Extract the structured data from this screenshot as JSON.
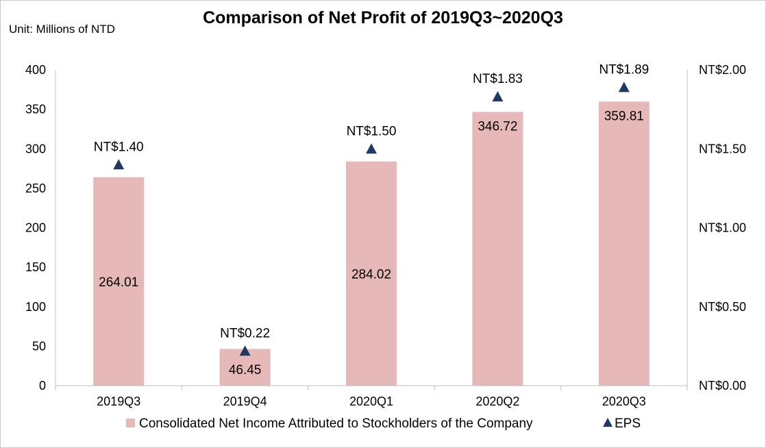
{
  "chart_data": {
    "type": "bar",
    "title": "Comparison of Net Profit of 2019Q3~2020Q3",
    "unit_label": "Unit: Millions of NTD",
    "categories": [
      "2019Q3",
      "2019Q4",
      "2020Q1",
      "2020Q2",
      "2020Q3"
    ],
    "series": [
      {
        "name": "Consolidated Net Income Attributed to Stockholders of the Company",
        "kind": "bar",
        "axis": "left",
        "color": "#e6b8b7",
        "values": [
          264.01,
          46.45,
          284.02,
          346.72,
          359.81
        ],
        "labels": [
          "264.01",
          "46.45",
          "284.02",
          "346.72",
          "359.81"
        ]
      },
      {
        "name": "EPS",
        "kind": "triangle-marker",
        "axis": "right",
        "color": "#1f3864",
        "values": [
          1.4,
          0.22,
          1.5,
          1.83,
          1.89
        ],
        "labels": [
          "NT$1.40",
          "NT$0.22",
          "NT$1.50",
          "NT$1.83",
          "NT$1.89"
        ]
      }
    ],
    "y_left": {
      "min": 0,
      "max": 400,
      "ticks": [
        0,
        50,
        100,
        150,
        200,
        250,
        300,
        350,
        400
      ],
      "tick_labels": [
        "0",
        "50",
        "100",
        "150",
        "200",
        "250",
        "300",
        "350",
        "400"
      ]
    },
    "y_right": {
      "min": 0,
      "max": 2,
      "ticks": [
        0,
        0.5,
        1,
        1.5,
        2
      ],
      "tick_labels": [
        "NT$0.00",
        "NT$0.50",
        "NT$1.00",
        "NT$1.50",
        "NT$2.00"
      ]
    },
    "grid": false,
    "legend": {
      "position": "bottom",
      "entries": [
        "Consolidated Net Income Attributed to Stockholders of the Company",
        "EPS"
      ]
    }
  }
}
